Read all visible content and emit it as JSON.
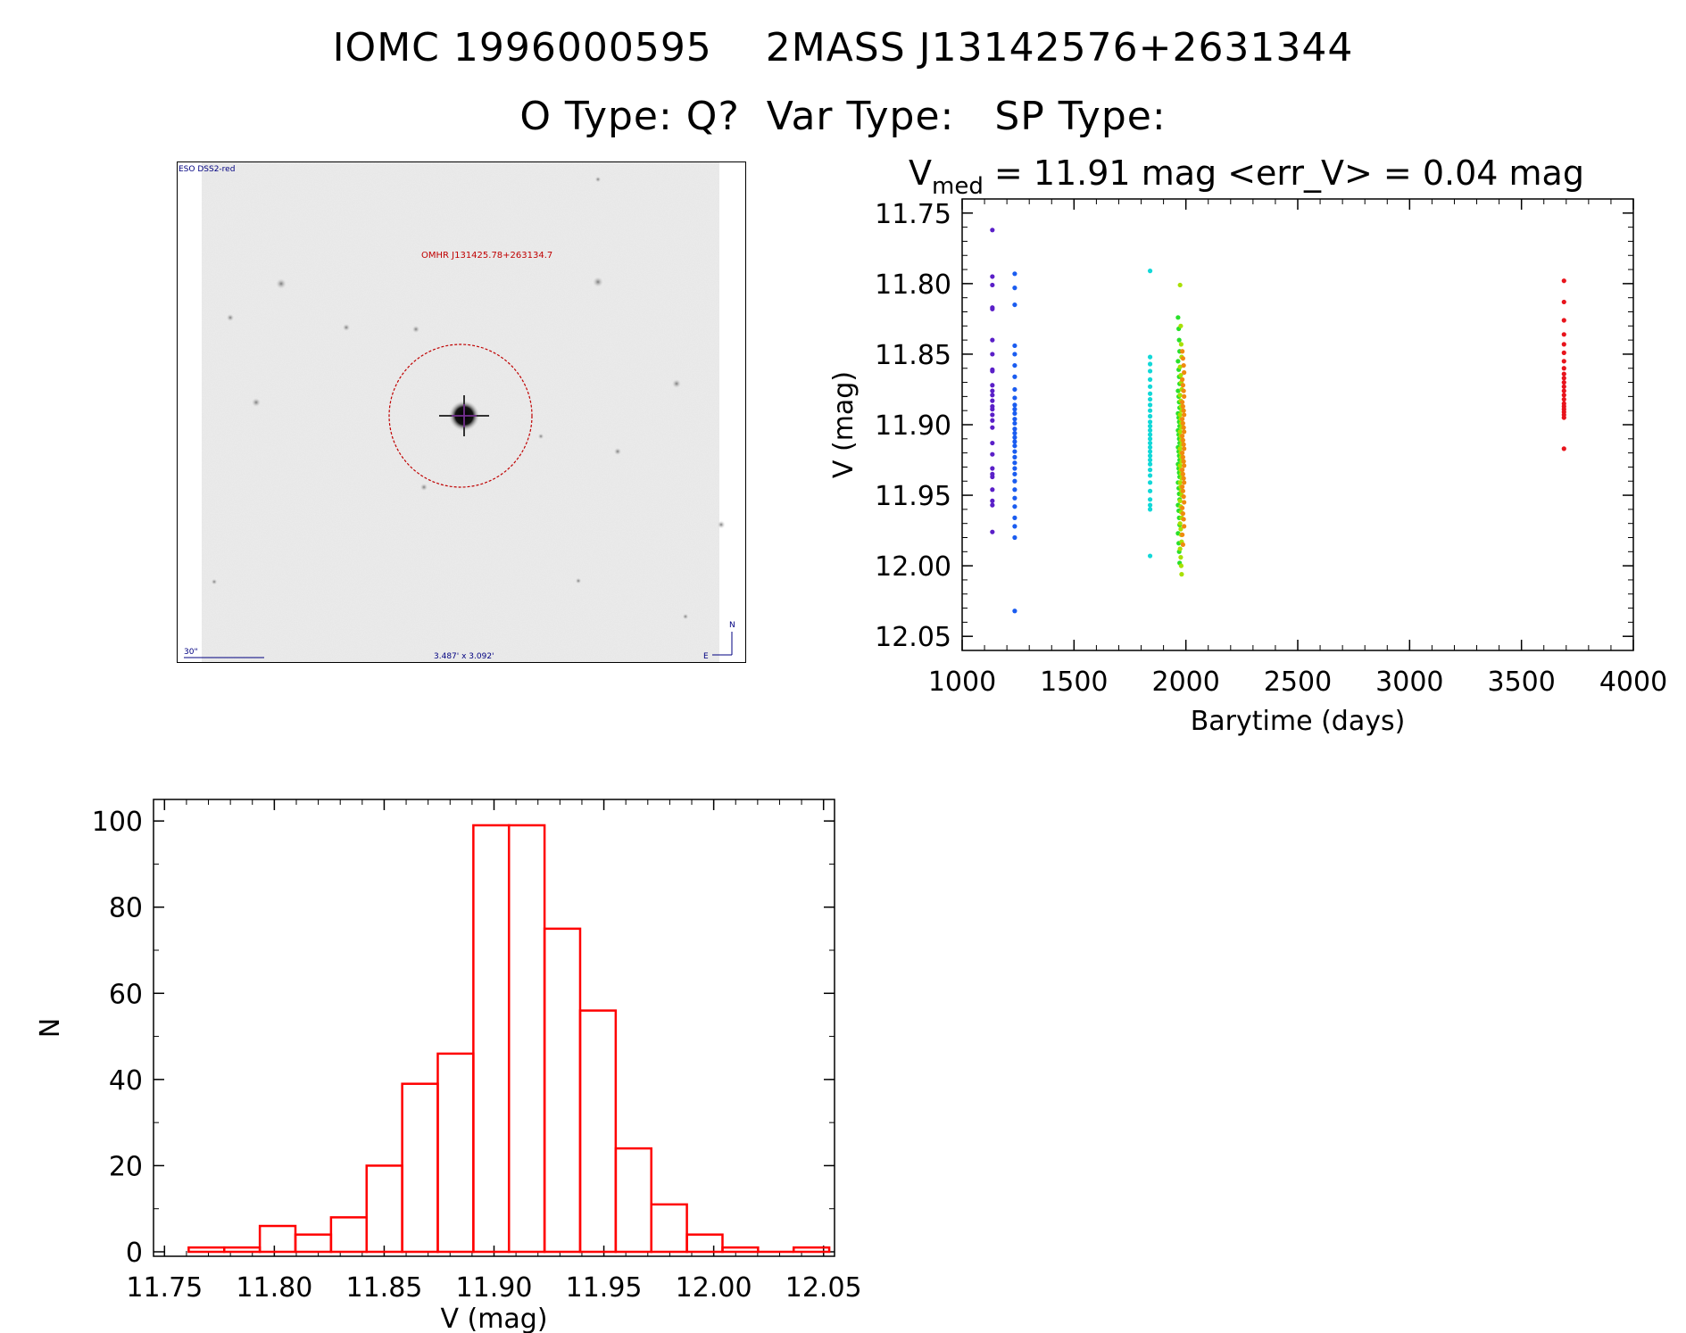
{
  "header": {
    "title": "IOMC 1996000595    2MASS J13142576+2631344",
    "subtitle": "O Type: Q?  Var Type:   SP Type:"
  },
  "sky_image": {
    "survey_label": "ESO DSS2-red",
    "object_label": "OMHR J131425.78+263134.7",
    "scale_label": "30\"",
    "fov_label": "3.487' x 3.092'",
    "north_label": "N",
    "east_label": "E",
    "marker_color": "#c00000",
    "label_color": "#000080"
  },
  "chart_data": [
    {
      "type": "scatter",
      "title_prefix": "V",
      "title_sub": "med",
      "title_rest": " = 11.91 mag <err_V> = 0.04 mag",
      "xlabel": "Barytime (days)",
      "ylabel": "V (mag)",
      "xlim": [
        1000,
        4000
      ],
      "ylim": [
        12.06,
        11.74
      ],
      "xticks": [
        1000,
        1500,
        2000,
        2500,
        3000,
        3500,
        4000
      ],
      "yticks": [
        11.75,
        11.8,
        11.85,
        11.9,
        11.95,
        12.0,
        12.05
      ],
      "xtick_labels": [
        "1000",
        "1500",
        "2000",
        "2500",
        "3000",
        "3500",
        "4000"
      ],
      "ytick_labels": [
        "11.75",
        "11.80",
        "11.85",
        "11.90",
        "11.95",
        "12.00",
        "12.05"
      ],
      "series": [
        {
          "color": "#5a1fc8",
          "x": [
            1135,
            1135,
            1135,
            1135,
            1135,
            1135,
            1135,
            1135,
            1135,
            1135,
            1135,
            1135,
            1135,
            1135,
            1135,
            1135,
            1135,
            1135,
            1135,
            1135,
            1135,
            1135,
            1135,
            1135,
            1135,
            1135,
            1135
          ],
          "y": [
            11.762,
            11.795,
            11.801,
            11.817,
            11.818,
            11.84,
            11.85,
            11.861,
            11.862,
            11.872,
            11.876,
            11.879,
            11.883,
            11.887,
            11.889,
            11.893,
            11.897,
            11.902,
            11.913,
            11.921,
            11.931,
            11.935,
            11.937,
            11.946,
            11.954,
            11.957,
            11.976
          ]
        },
        {
          "color": "#1a5cf0",
          "x": [
            1235,
            1235,
            1235,
            1235,
            1235,
            1235,
            1235,
            1235,
            1235,
            1235,
            1235,
            1235,
            1235,
            1235,
            1235,
            1235,
            1235,
            1235,
            1235,
            1235,
            1235,
            1235,
            1235,
            1235,
            1235,
            1235,
            1235,
            1235,
            1235,
            1235,
            1235,
            1235
          ],
          "y": [
            11.793,
            11.803,
            11.815,
            11.844,
            11.85,
            11.858,
            11.866,
            11.875,
            11.881,
            11.886,
            11.889,
            11.892,
            11.896,
            11.899,
            11.903,
            11.906,
            11.909,
            11.912,
            11.915,
            11.919,
            11.923,
            11.927,
            11.931,
            11.935,
            11.94,
            11.946,
            11.952,
            11.958,
            11.966,
            11.972,
            11.98,
            12.032
          ]
        },
        {
          "color": "#12d8d8",
          "x": [
            1840,
            1840,
            1840,
            1840,
            1840,
            1840,
            1840,
            1840,
            1840,
            1840,
            1840,
            1840,
            1840,
            1840,
            1840,
            1840,
            1840,
            1840,
            1840,
            1840,
            1840,
            1840,
            1840,
            1840,
            1840,
            1840,
            1840,
            1840,
            1840,
            1840
          ],
          "y": [
            11.791,
            11.852,
            11.857,
            11.862,
            11.868,
            11.873,
            11.878,
            11.882,
            11.886,
            11.89,
            11.894,
            11.898,
            11.901,
            11.904,
            11.907,
            11.91,
            11.913,
            11.916,
            11.919,
            11.922,
            11.925,
            11.928,
            11.932,
            11.936,
            11.941,
            11.947,
            11.953,
            11.957,
            11.96,
            11.993
          ]
        },
        {
          "color": "#28e02a",
          "x": [
            1965,
            1968,
            1970,
            1972,
            1965,
            1968,
            1970,
            1972,
            1965,
            1968,
            1970,
            1972,
            1965,
            1968,
            1970,
            1972,
            1965,
            1968,
            1970,
            1972,
            1965,
            1968,
            1970,
            1972,
            1965,
            1968,
            1970,
            1972,
            1965,
            1968,
            1970,
            1972,
            1965,
            1968,
            1970,
            1972,
            1965,
            1968,
            1970,
            1972
          ],
          "y": [
            11.824,
            11.832,
            11.84,
            11.848,
            11.855,
            11.861,
            11.866,
            11.871,
            11.876,
            11.88,
            11.884,
            11.888,
            11.892,
            11.895,
            11.898,
            11.901,
            11.904,
            11.907,
            11.91,
            11.913,
            11.916,
            11.919,
            11.922,
            11.925,
            11.928,
            11.931,
            11.934,
            11.937,
            11.941,
            11.945,
            11.949,
            11.953,
            11.957,
            11.961,
            11.966,
            11.971,
            11.977,
            11.984,
            11.99,
            11.998
          ]
        },
        {
          "color": "#a8e000",
          "x": [
            1974,
            1977,
            1979,
            1981,
            1974,
            1977,
            1979,
            1981,
            1974,
            1977,
            1979,
            1981,
            1974,
            1977,
            1979,
            1981,
            1974,
            1977,
            1979,
            1981,
            1974,
            1977,
            1979,
            1981,
            1974,
            1977,
            1979,
            1981,
            1974,
            1977,
            1979,
            1981,
            1974,
            1977,
            1979,
            1981,
            1974,
            1977,
            1979,
            1981,
            1974,
            1977,
            1979,
            1981
          ],
          "y": [
            11.801,
            11.83,
            11.843,
            11.852,
            11.859,
            11.865,
            11.87,
            11.875,
            11.879,
            11.883,
            11.887,
            11.89,
            11.893,
            11.896,
            11.899,
            11.902,
            11.905,
            11.908,
            11.911,
            11.914,
            11.917,
            11.92,
            11.923,
            11.926,
            11.929,
            11.932,
            11.935,
            11.938,
            11.941,
            11.944,
            11.947,
            11.95,
            11.954,
            11.958,
            11.962,
            11.966,
            11.97,
            11.974,
            11.978,
            11.983,
            11.988,
            11.994,
            12.0,
            12.006
          ]
        },
        {
          "color": "#f08a10",
          "x": [
            1984,
            1987,
            1990,
            1992,
            1984,
            1987,
            1990,
            1992,
            1984,
            1987,
            1990,
            1992,
            1984,
            1987,
            1990,
            1992,
            1984,
            1987,
            1990,
            1992,
            1984,
            1987,
            1990,
            1992,
            1984,
            1987,
            1990,
            1992,
            1984,
            1987,
            1990,
            1992,
            1984,
            1987,
            1990,
            1992,
            1984,
            1987
          ],
          "y": [
            11.848,
            11.853,
            11.858,
            11.863,
            11.868,
            11.872,
            11.876,
            11.88,
            11.884,
            11.887,
            11.89,
            11.893,
            11.896,
            11.899,
            11.902,
            11.905,
            11.908,
            11.911,
            11.914,
            11.917,
            11.92,
            11.923,
            11.926,
            11.929,
            11.932,
            11.935,
            11.938,
            11.941,
            11.944,
            11.947,
            11.951,
            11.955,
            11.959,
            11.963,
            11.967,
            11.972,
            11.978,
            11.985
          ]
        },
        {
          "color": "#e8141c",
          "x": [
            3690,
            3690,
            3690,
            3690,
            3690,
            3690,
            3690,
            3690,
            3690,
            3690,
            3690,
            3690,
            3690,
            3690,
            3690,
            3690,
            3690,
            3690,
            3690,
            3690,
            3690,
            3690
          ],
          "y": [
            11.798,
            11.813,
            11.826,
            11.836,
            11.843,
            11.849,
            11.855,
            11.86,
            11.864,
            11.867,
            11.87,
            11.873,
            11.876,
            11.879,
            11.882,
            11.885,
            11.887,
            11.889,
            11.891,
            11.893,
            11.895,
            11.917
          ]
        }
      ]
    },
    {
      "type": "bar",
      "xlabel": "V (mag)",
      "ylabel": "N",
      "bar_color": "#ff0000",
      "xlim": [
        11.745,
        12.055
      ],
      "ylim": [
        0,
        105
      ],
      "xticks": [
        11.75,
        11.8,
        11.85,
        11.9,
        11.95,
        12.0,
        12.05
      ],
      "yticks": [
        0,
        20,
        40,
        60,
        80,
        100
      ],
      "xtick_labels": [
        "11.75",
        "11.80",
        "11.85",
        "11.90",
        "11.95",
        "12.00",
        "12.05"
      ],
      "ytick_labels": [
        "0",
        "20",
        "40",
        "60",
        "80",
        "100"
      ],
      "bin_width": 0.0162,
      "bin_starts": [
        11.761,
        11.7772,
        11.7934,
        11.8096,
        11.8258,
        11.842,
        11.8582,
        11.8744,
        11.8906,
        11.9068,
        11.923,
        11.9392,
        11.9554,
        11.9716,
        11.9878,
        12.004,
        12.0202,
        12.0364
      ],
      "values": [
        1,
        1,
        6,
        4,
        8,
        20,
        39,
        46,
        99,
        99,
        75,
        56,
        24,
        11,
        4,
        1,
        0,
        1
      ]
    }
  ]
}
